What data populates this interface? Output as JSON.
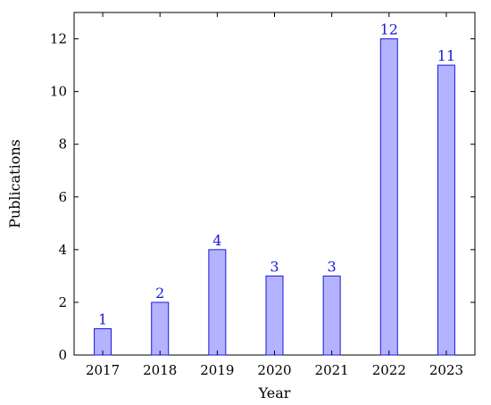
{
  "chart_data": {
    "type": "bar",
    "categories": [
      "2017",
      "2018",
      "2019",
      "2020",
      "2021",
      "2022",
      "2023"
    ],
    "values": [
      1,
      2,
      4,
      3,
      3,
      12,
      11
    ],
    "data_labels": [
      "1",
      "2",
      "4",
      "3",
      "3",
      "12",
      "11"
    ],
    "title": "",
    "xlabel": "Year",
    "ylabel": "Publications",
    "ylim": [
      0,
      13
    ],
    "y_ticks": [
      0,
      2,
      4,
      6,
      8,
      10,
      12
    ],
    "y_tick_labels": [
      "0",
      "2",
      "4",
      "6",
      "8",
      "10",
      "12"
    ],
    "grid": false,
    "legend": "none",
    "colors": {
      "bar_fill": "#b3b3ff",
      "bar_stroke": "#1a1ad9",
      "label": "#1a1ad9",
      "axis": "#000000"
    }
  }
}
